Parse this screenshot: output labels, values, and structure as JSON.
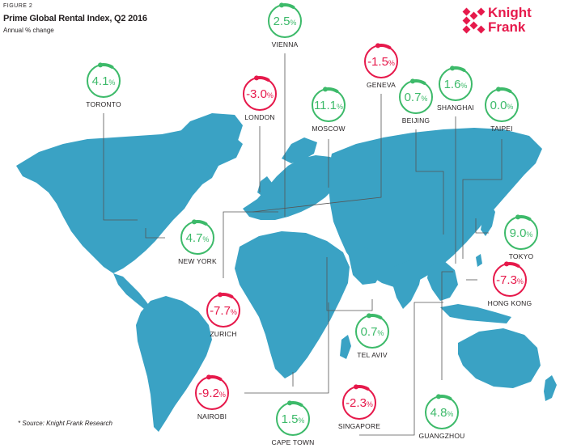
{
  "header": {
    "figure_label": "FIGURE 2",
    "title": "Prime Global Rental Index, Q2 2016",
    "subtitle": "Annual % change"
  },
  "logo": {
    "line1": "Knight",
    "line2": "Frank"
  },
  "source": "* Source: Knight Frank Research",
  "colors": {
    "positive": "#3dba6a",
    "negative": "#e6194b",
    "map": "#3aa2c4",
    "connector": "#555555"
  },
  "cities": [
    {
      "name": "VIENNA",
      "value": "2.5",
      "unit": "%",
      "positive": true
    },
    {
      "name": "GENEVA",
      "value": "-1.5",
      "unit": "%",
      "positive": false
    },
    {
      "name": "TORONTO",
      "value": "4.1",
      "unit": "%",
      "positive": true
    },
    {
      "name": "LONDON",
      "value": "-3.0",
      "unit": "%",
      "positive": false
    },
    {
      "name": "MOSCOW",
      "value": "11.1",
      "unit": "%",
      "positive": true
    },
    {
      "name": "BEIJING",
      "value": "0.7",
      "unit": "%",
      "positive": true
    },
    {
      "name": "SHANGHAI",
      "value": "1.6",
      "unit": "%",
      "positive": true
    },
    {
      "name": "TAIPEI",
      "value": "0.0",
      "unit": "%",
      "positive": true
    },
    {
      "name": "NEW YORK",
      "value": "4.7",
      "unit": "%",
      "positive": true
    },
    {
      "name": "TOKYO",
      "value": "9.0",
      "unit": "%",
      "positive": true
    },
    {
      "name": "HONG KONG",
      "value": "-7.3",
      "unit": "%",
      "positive": false
    },
    {
      "name": "ZURICH",
      "value": "-7.7",
      "unit": "%",
      "positive": false
    },
    {
      "name": "TEL AVIV",
      "value": "0.7",
      "unit": "%",
      "positive": true
    },
    {
      "name": "NAIROBI",
      "value": "-9.2",
      "unit": "%",
      "positive": false
    },
    {
      "name": "CAPE TOWN",
      "value": "1.5",
      "unit": "%",
      "positive": true
    },
    {
      "name": "SINGAPORE",
      "value": "-2.3",
      "unit": "%",
      "positive": false
    },
    {
      "name": "GUANGZHOU",
      "value": "4.8",
      "unit": "%",
      "positive": true
    }
  ]
}
